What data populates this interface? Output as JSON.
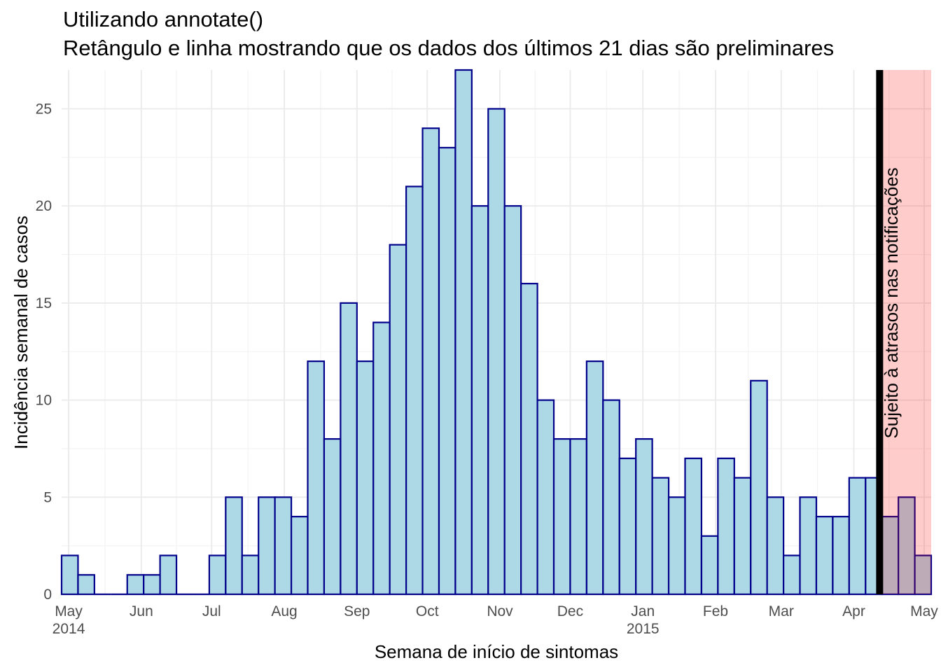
{
  "chart_data": {
    "type": "bar",
    "title": "Utilizando annotate()",
    "subtitle": "Retângulo e linha mostrando que os dados dos últimos 21 dias são preliminares",
    "xlabel": "Semana de início de sintomas",
    "ylabel": "Incidência semanal de casos",
    "ylim": [
      0,
      27
    ],
    "xlim": [
      "2014-04-28",
      "2015-05-04"
    ],
    "grid": true,
    "y_ticks": [
      0,
      5,
      10,
      15,
      20,
      25
    ],
    "x_ticks": [
      {
        "date": "2014-05-01",
        "label": "May",
        "sublabel": "2014"
      },
      {
        "date": "2014-06-01",
        "label": "Jun",
        "sublabel": ""
      },
      {
        "date": "2014-07-01",
        "label": "Jul",
        "sublabel": ""
      },
      {
        "date": "2014-08-01",
        "label": "Aug",
        "sublabel": ""
      },
      {
        "date": "2014-09-01",
        "label": "Sep",
        "sublabel": ""
      },
      {
        "date": "2014-10-01",
        "label": "Oct",
        "sublabel": ""
      },
      {
        "date": "2014-11-01",
        "label": "Nov",
        "sublabel": ""
      },
      {
        "date": "2014-12-01",
        "label": "Dec",
        "sublabel": ""
      },
      {
        "date": "2015-01-01",
        "label": "Jan",
        "sublabel": "2015"
      },
      {
        "date": "2015-02-01",
        "label": "Feb",
        "sublabel": ""
      },
      {
        "date": "2015-03-01",
        "label": "Mar",
        "sublabel": ""
      },
      {
        "date": "2015-04-01",
        "label": "Apr",
        "sublabel": ""
      },
      {
        "date": "2015-05-01",
        "label": "May",
        "sublabel": ""
      }
    ],
    "week_starts": [
      "2014-04-28",
      "2014-05-05",
      "2014-05-12",
      "2014-05-19",
      "2014-05-26",
      "2014-06-02",
      "2014-06-09",
      "2014-06-16",
      "2014-06-23",
      "2014-06-30",
      "2014-07-07",
      "2014-07-14",
      "2014-07-21",
      "2014-07-28",
      "2014-08-04",
      "2014-08-11",
      "2014-08-18",
      "2014-08-25",
      "2014-09-01",
      "2014-09-08",
      "2014-09-15",
      "2014-09-22",
      "2014-09-29",
      "2014-10-06",
      "2014-10-13",
      "2014-10-20",
      "2014-10-27",
      "2014-11-03",
      "2014-11-10",
      "2014-11-17",
      "2014-11-24",
      "2014-12-01",
      "2014-12-08",
      "2014-12-15",
      "2014-12-22",
      "2014-12-29",
      "2015-01-05",
      "2015-01-12",
      "2015-01-19",
      "2015-01-26",
      "2015-02-02",
      "2015-02-09",
      "2015-02-16",
      "2015-02-23",
      "2015-03-02",
      "2015-03-09",
      "2015-03-16",
      "2015-03-23",
      "2015-03-30",
      "2015-04-06",
      "2015-04-13",
      "2015-04-20",
      "2015-04-27"
    ],
    "values": [
      2,
      1,
      0,
      0,
      1,
      1,
      2,
      0,
      0,
      2,
      5,
      2,
      5,
      5,
      4,
      12,
      8,
      15,
      12,
      14,
      18,
      21,
      24,
      23,
      27,
      20,
      25,
      20,
      16,
      10,
      8,
      8,
      12,
      10,
      7,
      8,
      6,
      5,
      7,
      3,
      7,
      6,
      11,
      5,
      2,
      5,
      4,
      4,
      6,
      6,
      4,
      5,
      2
    ],
    "colors": {
      "bar_fill": "#add8e6",
      "bar_outline": "#00008b",
      "shade_fill": "#ffcccc",
      "line": "#000000"
    },
    "annotations": [
      {
        "type": "rect",
        "xmin": "2015-04-12",
        "xmax": "2015-05-04",
        "fill": "#ff0000",
        "alpha": 0.2
      },
      {
        "type": "vline",
        "x": "2015-04-12",
        "color": "#000000"
      },
      {
        "type": "text",
        "x": "2015-04-17",
        "y": 15,
        "label": "Sujeito à atrasos nas notificações",
        "angle": 90
      }
    ]
  }
}
